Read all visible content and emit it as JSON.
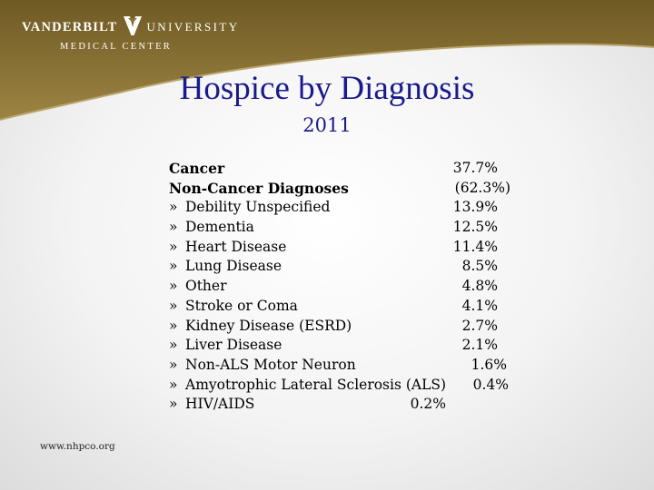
{
  "header": {
    "logo_left": "VANDERBILT",
    "logo_right": "UNIVERSITY",
    "logo_sub": "MEDICAL CENTER"
  },
  "slide": {
    "title": "Hospice by Diagnosis",
    "subtitle": "2011"
  },
  "diagnoses": [
    {
      "label": "Cancer",
      "value": "37.7%",
      "bullet": "",
      "bold": true
    },
    {
      "label": "Non-Cancer Diagnoses",
      "value": "(62.3%)",
      "bullet": "",
      "bold": true
    },
    {
      "label": "Debility Unspecified",
      "value": "13.9%",
      "bullet": "»"
    },
    {
      "label": "Dementia",
      "value": "12.5%",
      "bullet": "»"
    },
    {
      "label": "Heart Disease",
      "value": "11.4%",
      "bullet": "»"
    },
    {
      "label": "Lung Disease",
      "value": "8.5%",
      "bullet": "»"
    },
    {
      "label": "Other",
      "value": "4.8%",
      "bullet": "»"
    },
    {
      "label": "Stroke or Coma",
      "value": "4.1%",
      "bullet": "»"
    },
    {
      "label": "Kidney Disease (ESRD)",
      "value": "2.7%",
      "bullet": "»"
    },
    {
      "label": "Liver Disease",
      "value": "2.1%",
      "bullet": "»"
    },
    {
      "label": "Non-ALS Motor Neuron",
      "value": "1.6%",
      "bullet": "»"
    },
    {
      "label": "Amyotrophic Lateral Sclerosis (ALS)",
      "value": "0.4%",
      "bullet": "»"
    },
    {
      "label": "HIV/AIDS",
      "value": "0.2%",
      "bullet": "»"
    }
  ],
  "footer": {
    "source": "www.nhpco.org"
  },
  "colors": {
    "banner_gold": "#8a7134",
    "title_blue": "#1a1a8c"
  }
}
